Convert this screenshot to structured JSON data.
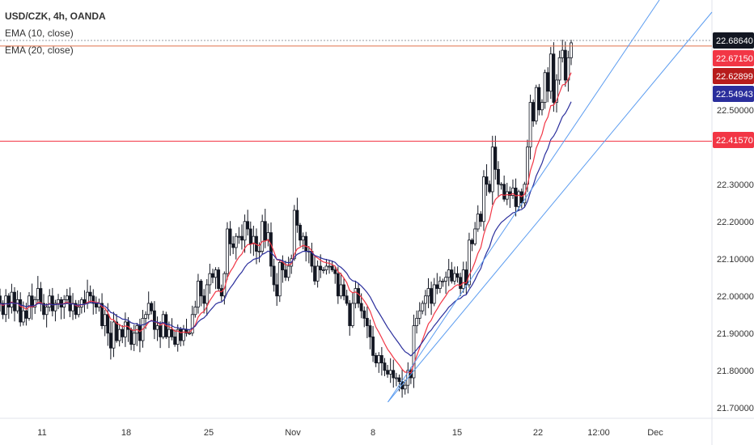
{
  "header": {
    "symbol_line": "USD/CZK, 4h, OANDA",
    "ema10_label": "EMA (10, close)",
    "ema20_label": "EMA (20, close)"
  },
  "chart_data": {
    "type": "candlestick",
    "symbol": "USD/CZK",
    "timeframe": "4h",
    "source": "OANDA",
    "ylim": [
      21.66,
      22.76
    ],
    "y_ticks": [
      "22.50000",
      "22.30000",
      "22.20000",
      "22.10000",
      "22.00000",
      "21.90000",
      "21.80000",
      "21.70000"
    ],
    "x_ticks": [
      "11",
      "18",
      "25",
      "Nov",
      "8",
      "15",
      "22",
      "12:00",
      "Dec"
    ],
    "price_badges": [
      {
        "name": "last-price",
        "value": "22.68640",
        "color": "#131722"
      },
      {
        "name": "ema10",
        "value": "22.67150",
        "color": "#f23645"
      },
      {
        "name": "ema-mid",
        "value": "22.62899",
        "color": "#b71c1c"
      },
      {
        "name": "ema20",
        "value": "22.54943",
        "color": "#2a2e9c"
      },
      {
        "name": "horizontal-level",
        "value": "22.41570",
        "color": "#f23645"
      }
    ],
    "horizontal_lines": [
      {
        "name": "last-price-line",
        "value": 22.6864,
        "style": "dotted",
        "color": "#9598a1"
      },
      {
        "name": "resistance-line",
        "value": 22.6715,
        "style": "solid",
        "color": "#e0704a"
      },
      {
        "name": "support-line",
        "value": 22.4157,
        "style": "solid",
        "color": "#f23645"
      }
    ],
    "trendlines_color": "#5b9cf0",
    "series_colors": {
      "up": "#ffffff",
      "down": "#131722",
      "ema10": "#f23645",
      "ema20": "#2a2e9c"
    },
    "closes": [
      21.98,
      21.95,
      22.0,
      21.97,
      22.01,
      21.96,
      21.99,
      21.93,
      21.96,
      21.94,
      22.0,
      21.97,
      21.99,
      22.02,
      21.98,
      21.95,
      21.97,
      22.0,
      21.96,
      21.98,
      21.99,
      21.97,
      21.99,
      22.0,
      21.96,
      21.98,
      21.95,
      21.97,
      21.99,
      21.98,
      22.01,
      22.0,
      21.98,
      21.97,
      21.98,
      21.92,
      21.95,
      21.9,
      21.86,
      21.93,
      21.88,
      21.91,
      21.89,
      21.93,
      21.91,
      21.87,
      21.9,
      21.92,
      21.88,
      21.94,
      21.95,
      21.98,
      21.96,
      21.91,
      21.92,
      21.89,
      21.95,
      21.89,
      21.91,
      21.89,
      21.87,
      21.91,
      21.88,
      21.91,
      21.9,
      21.9,
      21.95,
      21.97,
      22.04,
      22.0,
      21.98,
      22.03,
      22.06,
      22.05,
      22.07,
      22.02,
      22.0,
      22.06,
      22.18,
      22.14,
      22.13,
      22.16,
      22.16,
      22.15,
      22.2,
      22.18,
      22.14,
      22.16,
      22.12,
      22.12,
      22.2,
      22.15,
      22.17,
      22.08,
      22.03,
      22.0,
      22.09,
      22.07,
      22.05,
      22.08,
      22.1,
      22.23,
      22.19,
      22.15,
      22.16,
      22.12,
      22.12,
      22.08,
      22.04,
      22.08,
      22.07,
      22.07,
      22.08,
      22.08,
      22.07,
      22.06,
      22.0,
      22.03,
      22.0,
      21.98,
      21.92,
      21.98,
      22.02,
      21.98,
      21.96,
      21.94,
      21.92,
      21.89,
      21.84,
      21.82,
      21.84,
      21.82,
      21.8,
      21.79,
      21.8,
      21.78,
      21.78,
      21.77,
      21.75,
      21.76,
      21.8,
      21.78,
      21.92,
      21.94,
      21.96,
      21.98,
      22.0,
      22.02,
      21.98,
      22.03,
      22.02,
      22.04,
      22.04,
      22.05,
      22.07,
      22.04,
      22.06,
      22.05,
      22.02,
      22.07,
      22.03,
      22.15,
      22.14,
      22.18,
      22.22,
      22.2,
      22.32,
      22.3,
      22.28,
      22.4,
      22.34,
      22.3,
      22.3,
      22.26,
      22.28,
      22.27,
      22.29,
      22.24,
      22.28,
      22.25,
      22.3,
      22.4,
      22.52,
      22.47,
      22.56,
      22.5,
      22.52,
      22.6,
      22.55,
      22.65,
      22.52,
      22.58,
      22.64,
      22.66,
      22.58,
      22.64,
      22.68
    ]
  }
}
